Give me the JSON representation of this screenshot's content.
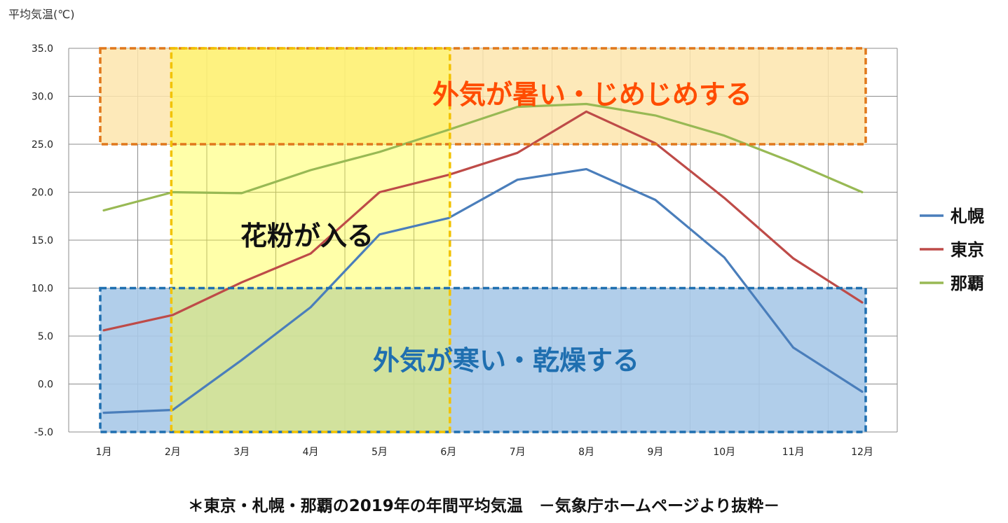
{
  "chart_data": {
    "type": "line",
    "ylabel": "平均気温(℃)",
    "ylim": [
      -5,
      35
    ],
    "yticks": [
      "35.0",
      "30.0",
      "25.0",
      "20.0",
      "15.0",
      "10.0",
      "5.0",
      "0.0",
      "-5.0"
    ],
    "categories": [
      "1月",
      "2月",
      "3月",
      "4月",
      "5月",
      "6月",
      "7月",
      "8月",
      "9月",
      "10月",
      "11月",
      "12月"
    ],
    "grid": true,
    "legend_position": "right",
    "series": [
      {
        "name": "札幌",
        "color": "#4a7ebb",
        "values": [
          -3.0,
          -2.7,
          2.5,
          8.0,
          15.6,
          17.3,
          21.3,
          22.4,
          19.2,
          13.2,
          3.8,
          -0.8
        ]
      },
      {
        "name": "東京",
        "color": "#be4b48",
        "values": [
          5.6,
          7.2,
          10.6,
          13.6,
          20.0,
          21.8,
          24.1,
          28.4,
          25.1,
          19.4,
          13.1,
          8.5
        ]
      },
      {
        "name": "那覇",
        "color": "#98b954",
        "values": [
          18.1,
          20.0,
          19.9,
          22.3,
          24.2,
          26.5,
          28.9,
          29.2,
          28.0,
          25.9,
          23.1,
          20.0
        ]
      }
    ],
    "annotations": {
      "hot": {
        "text": "外気が暑い・じめじめする",
        "color": "#ff4c00",
        "y_range": [
          25,
          35
        ],
        "x_range": [
          "1月",
          "12月"
        ]
      },
      "pollen": {
        "text": "花粉が入る",
        "color": "#111111",
        "y_range": [
          -5,
          35
        ],
        "x_range": [
          "2月",
          "6月"
        ]
      },
      "cold": {
        "text": "外気が寒い・乾燥する",
        "color": "#1f6fb0",
        "y_range": [
          -5,
          10
        ],
        "x_range": [
          "1月",
          "12月"
        ]
      }
    }
  },
  "caption": "＊東京・札幌・那覇の2019年の年間平均気温　－気象庁ホームページより抜粋－"
}
